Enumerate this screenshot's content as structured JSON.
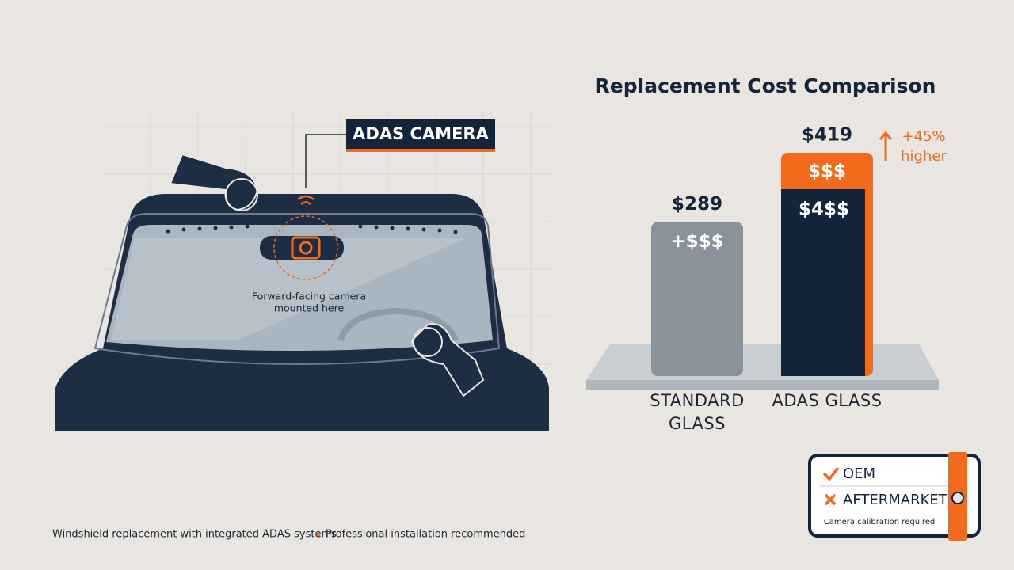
{
  "chart_data": {
    "type": "bar",
    "title": "Replacement Cost Comparison",
    "categories": [
      "STANDARD GLASS",
      "ADAS GLASS"
    ],
    "values": [
      289,
      419
    ],
    "value_labels": [
      "$289",
      "$419"
    ],
    "colors": [
      "#8a939b",
      "#14243b"
    ],
    "accent": "#f26a1b",
    "inner_labels": [
      "+$$$",
      "$4$$"
    ],
    "highlight_label": "$$$",
    "annotation": [
      "+45%",
      "higher"
    ]
  },
  "callout": {
    "label": "ADAS CAMERA",
    "note": [
      "Forward-facing camera",
      "mounted here"
    ]
  },
  "card": {
    "options": [
      "OEM",
      "AFTERMARKET"
    ],
    "note": "Camera calibration required"
  },
  "footer": [
    "Windshield replacement with integrated ADAS systems",
    "Professional installation recommended"
  ]
}
